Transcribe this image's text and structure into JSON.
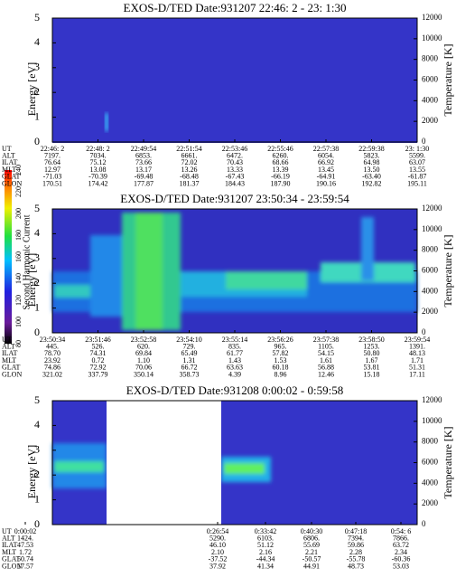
{
  "colorbar": {
    "label": "Second Harmonic Current",
    "ticks": [
      80,
      100,
      120,
      140,
      160,
      180,
      200,
      220,
      240
    ]
  },
  "panels": [
    {
      "title": "EXOS-D/TED   Date:931207  22:46: 2 - 23: 1:30",
      "y_label": "Energy [eV]",
      "y2_label": "Temperature [K]",
      "ylim": [
        0,
        5
      ],
      "yticks": [
        0,
        1,
        2,
        3,
        4,
        5
      ],
      "y2lim": [
        0,
        12000
      ],
      "y2ticks": [
        0,
        2000,
        4000,
        6000,
        8000,
        10000,
        12000
      ],
      "orbit": {
        "labels": [
          "UT",
          "ALT",
          "ILAT",
          "MLT",
          "GLAT",
          "GLON"
        ],
        "rows": [
          [
            "22:46: 2",
            "22:48: 2",
            "22:49:54",
            "22:51:54",
            "22:53:46",
            "22:55:46",
            "22:57:38",
            "22:59:38",
            "23: 1:30"
          ],
          [
            "7197.",
            "7034.",
            "6853.",
            "6661.",
            "6472.",
            "6260.",
            "6054.",
            "5823.",
            "5599."
          ],
          [
            "76.64",
            "75.12",
            "73.66",
            "72.02",
            "70.43",
            "68.66",
            "66.92",
            "64.98",
            "63.07"
          ],
          [
            "12.97",
            "13.08",
            "13.17",
            "13.26",
            "13.33",
            "13.39",
            "13.45",
            "13.50",
            "13.55"
          ],
          [
            "-71.03",
            "-70.39",
            "-69.48",
            "-68.48",
            "-67.43",
            "-66.19",
            "-64.91",
            "-63.40",
            "-61.87"
          ],
          [
            "170.51",
            "174.42",
            "177.87",
            "181.37",
            "184.43",
            "187.90",
            "190.16",
            "192.82",
            "195.11"
          ]
        ]
      }
    },
    {
      "title": "EXOS-D/TED   Date:931207  23:50:34 - 23:59:54",
      "y_label": "Energy [eV]",
      "y2_label": "Temperature [K]",
      "ylim": [
        0,
        5
      ],
      "yticks": [
        0,
        1,
        2,
        3,
        4,
        5
      ],
      "y2lim": [
        0,
        12000
      ],
      "y2ticks": [
        0,
        2000,
        4000,
        6000,
        8000,
        10000,
        12000
      ],
      "orbit": {
        "labels": [
          "UT",
          "ALT",
          "ILAT",
          "MLT",
          "GLAT",
          "GLON"
        ],
        "rows": [
          [
            "23:50:34",
            "23:51:46",
            "23:52:58",
            "23:54:10",
            "23:55:14",
            "23:56:26",
            "23:57:38",
            "23:58:50",
            "23:59:54"
          ],
          [
            "445.",
            "526.",
            "620.",
            "729.",
            "835.",
            "965.",
            "1105.",
            "1253.",
            "1391."
          ],
          [
            "78.70",
            "74.31",
            "69.84",
            "65.49",
            "61.77",
            "57.82",
            "54.15",
            "50.80",
            "48.13"
          ],
          [
            "23.92",
            "0.72",
            "1.10",
            "1.31",
            "1.43",
            "1.53",
            "1.61",
            "1.67",
            "1.71"
          ],
          [
            "74.86",
            "72.92",
            "70.06",
            "66.72",
            "63.63",
            "60.18",
            "56.88",
            "53.81",
            "51.31"
          ],
          [
            "321.02",
            "337.79",
            "350.14",
            "358.73",
            "4.39",
            "8.96",
            "12.46",
            "15.18",
            "17.11"
          ]
        ]
      }
    },
    {
      "title": "EXOS-D/TED   Date:931208   0:00:02 - 0:59:58",
      "y_label": "Energy [eV]",
      "y2_label": "Temperature [K]",
      "ylim": [
        0,
        5
      ],
      "yticks": [
        0,
        1,
        2,
        3,
        4,
        5
      ],
      "y2lim": [
        0,
        12000
      ],
      "y2ticks": [
        0,
        2000,
        4000,
        6000,
        8000,
        10000,
        12000
      ],
      "orbit": {
        "labels": [
          "UT",
          "ALT",
          "ILAT",
          "MLT",
          "GLAT",
          "GLON"
        ],
        "rows": [
          [
            "0:00:02",
            "0:26:54",
            "0:33:42",
            "0:40:30",
            "0:47:18",
            "0:54: 6"
          ],
          [
            "1424.",
            "5290.",
            "6103.",
            "6806.",
            "7394.",
            "7866."
          ],
          [
            "47.53",
            "46.10",
            "51.12",
            "55.69",
            "59.86",
            "63.72"
          ],
          [
            "1.72",
            "2.10",
            "2.16",
            "2.21",
            "2.28",
            "2.34"
          ],
          [
            "50.74",
            "-37.52",
            "-44.34",
            "-50.57",
            "-55.78",
            "-60.36"
          ],
          [
            "17.57",
            "37.92",
            "41.34",
            "44.91",
            "48.73",
            "53.03"
          ]
        ]
      }
    }
  ]
}
